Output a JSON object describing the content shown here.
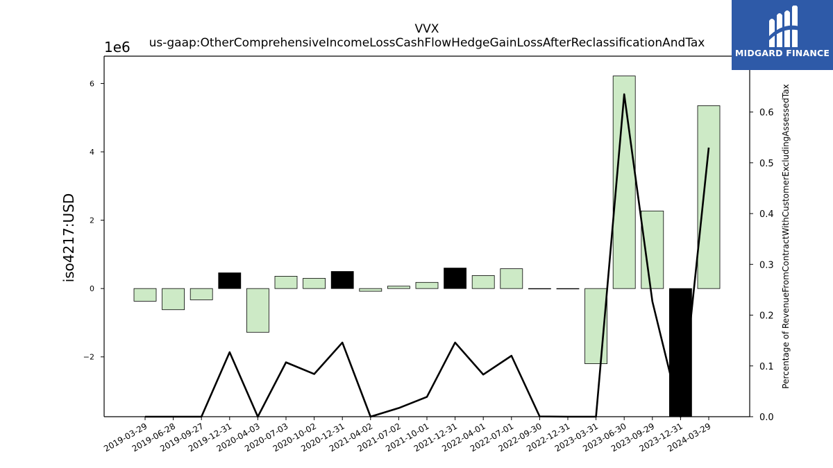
{
  "chart_data": {
    "type": "bar",
    "title": "VVX",
    "subtitle": "us-gaap:OtherComprehensiveIncomeLossCashFlowHedgeGainLossAfterReclassificationAndTax",
    "ylabel": "iso4217:USD",
    "y_multiplier": "1e6",
    "y2label": "Percentage of RevenueFromContractWithCustomerExcludingAssessedTax",
    "categories": [
      "2019-03-29",
      "2019-06-28",
      "2019-09-27",
      "2019-12-31",
      "2020-04-03",
      "2020-07-03",
      "2020-10-02",
      "2020-12-31",
      "2021-04-02",
      "2021-07-02",
      "2021-10-01",
      "2021-12-31",
      "2022-04-01",
      "2022-07-01",
      "2022-09-30",
      "2022-12-31",
      "2023-03-31",
      "2023-06-30",
      "2023-09-29",
      "2023-12-31",
      "2024-03-29"
    ],
    "series": [
      {
        "values": [
          -0.37,
          -0.62,
          -0.33,
          0.46,
          -1.28,
          0.36,
          0.3,
          0.5,
          -0.08,
          0.07,
          0.18,
          0.6,
          0.38,
          0.58,
          0.0,
          0.0,
          -2.2,
          6.22,
          2.27,
          -3.75,
          5.35
        ],
        "highlight": [
          false,
          false,
          false,
          true,
          false,
          false,
          false,
          true,
          false,
          false,
          false,
          true,
          false,
          false,
          false,
          false,
          false,
          false,
          false,
          true,
          false
        ]
      },
      {
        "axis": "right",
        "values": [
          0.0,
          0.0,
          0.0,
          0.127,
          0.0,
          0.107,
          0.084,
          0.146,
          0.0,
          0.017,
          0.039,
          0.146,
          0.083,
          0.12,
          0.0005,
          0.0,
          0.0,
          0.635,
          0.227,
          0.0,
          0.53
        ]
      }
    ],
    "ylim": [
      -3.75,
      6.8
    ],
    "y_ticks": [
      -2,
      0,
      2,
      4,
      6
    ],
    "y_tick_labels": [
      "−2",
      "0",
      "2",
      "4",
      "6"
    ],
    "y2lim": [
      0.0,
      0.71
    ],
    "y2_ticks": [
      0.0,
      0.1,
      0.2,
      0.3,
      0.4,
      0.5,
      0.6
    ],
    "y2_tick_labels": [
      "0.0",
      "0.1",
      "0.2",
      "0.3",
      "0.4",
      "0.5",
      "0.6"
    ],
    "grid": false,
    "colors": {
      "bar": "#cdeac6",
      "bar_highlight": "#000000",
      "line": "#000000"
    }
  },
  "logo": {
    "text": "MIDGARD FINANCE"
  }
}
